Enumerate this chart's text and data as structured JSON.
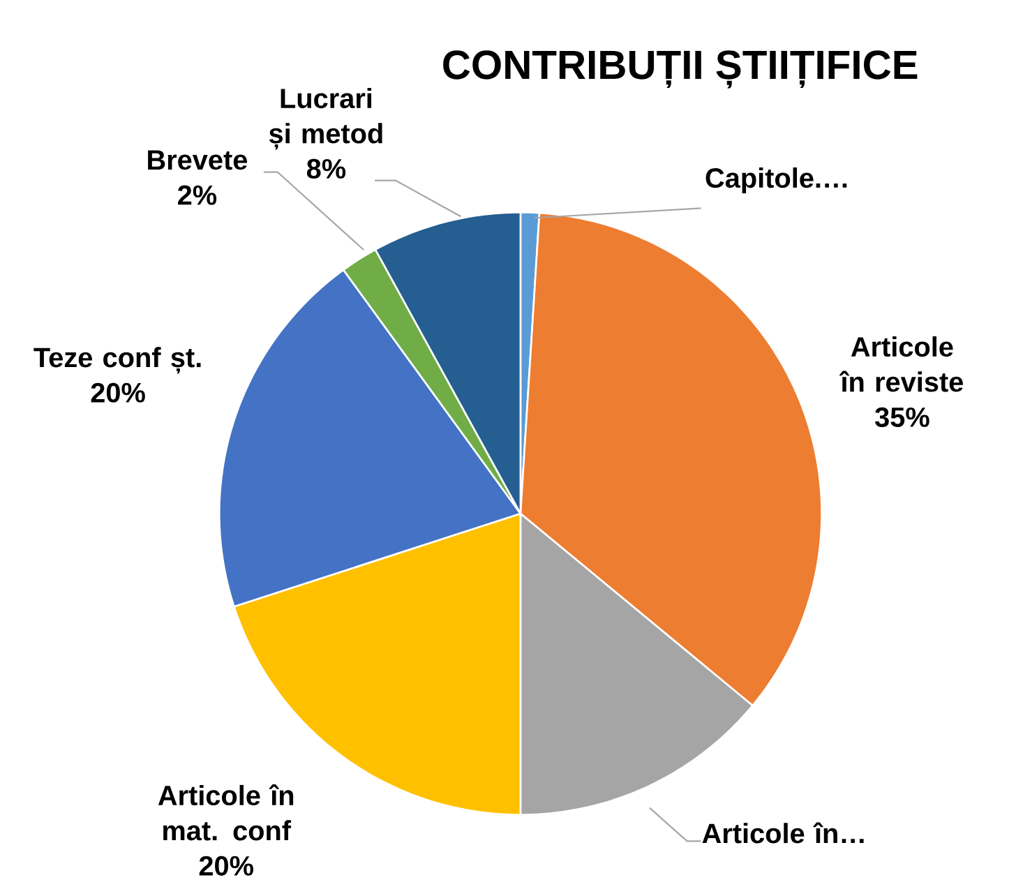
{
  "chart_data": {
    "type": "pie",
    "title": "CONTRIBUȚII ȘTIIȚIFICE",
    "categories": [
      "Capitole.…",
      "Articole în reviste",
      "Articole în…",
      "Articole în mat. conf",
      "Teze conf șt.",
      "Brevete",
      "Lucrari și metod"
    ],
    "values": [
      1,
      35,
      14,
      20,
      20,
      2,
      8
    ],
    "value_labels": [
      null,
      "35%",
      null,
      "20%",
      "20%",
      "2%",
      "8%"
    ],
    "colors": [
      "#5b9bd5",
      "#ed7d31",
      "#a5a5a5",
      "#ffc000",
      "#4472c4",
      "#70ad47",
      "#255e91"
    ]
  }
}
